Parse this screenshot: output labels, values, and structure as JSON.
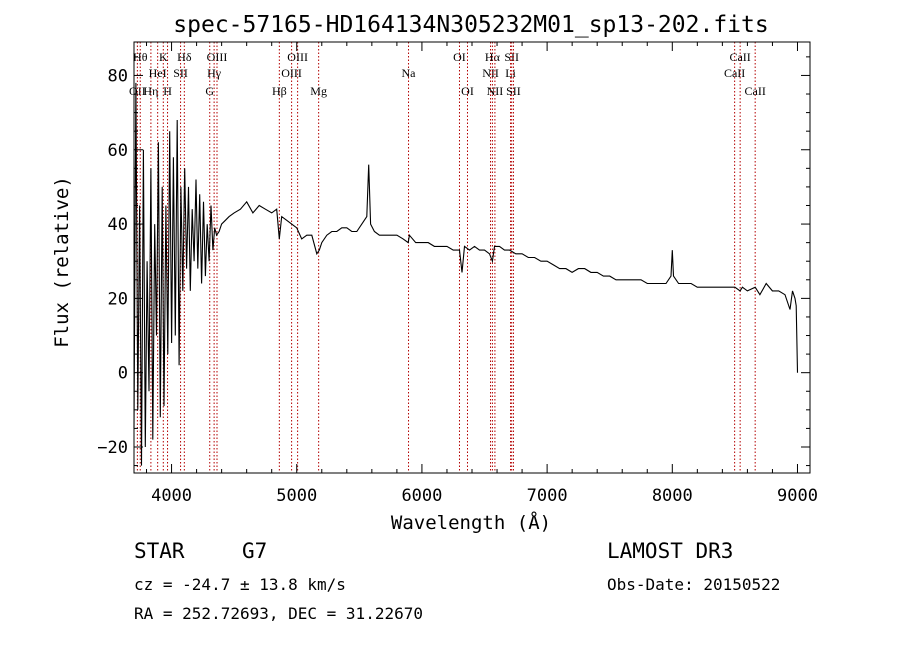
{
  "chart_data": {
    "type": "line",
    "title": "spec-57165-HD164134N305232M01_sp13-202.fits",
    "xlabel": "Wavelength (Å)",
    "ylabel": "Flux (relative)",
    "xlim": [
      3700,
      9100
    ],
    "ylim": [
      -27,
      89
    ],
    "xticks": [
      4000,
      5000,
      6000,
      7000,
      8000,
      9000
    ],
    "yticks": [
      -20,
      0,
      20,
      40,
      60,
      80
    ],
    "series": [
      {
        "name": "spectrum",
        "x": [
          3700,
          3715,
          3730,
          3745,
          3760,
          3775,
          3790,
          3805,
          3820,
          3835,
          3850,
          3865,
          3880,
          3895,
          3910,
          3925,
          3940,
          3955,
          3970,
          3985,
          4000,
          4015,
          4030,
          4045,
          4060,
          4075,
          4090,
          4105,
          4120,
          4135,
          4150,
          4165,
          4180,
          4195,
          4210,
          4225,
          4240,
          4255,
          4270,
          4285,
          4300,
          4315,
          4330,
          4345,
          4360,
          4380,
          4400,
          4430,
          4460,
          4500,
          4550,
          4600,
          4650,
          4700,
          4750,
          4800,
          4840,
          4861,
          4880,
          4920,
          4960,
          5000,
          5040,
          5080,
          5120,
          5160,
          5180,
          5200,
          5240,
          5280,
          5320,
          5360,
          5400,
          5440,
          5480,
          5520,
          5560,
          5575,
          5590,
          5620,
          5660,
          5700,
          5750,
          5800,
          5850,
          5890,
          5900,
          5950,
          6000,
          6050,
          6100,
          6150,
          6200,
          6250,
          6300,
          6320,
          6340,
          6380,
          6420,
          6460,
          6500,
          6540,
          6563,
          6580,
          6620,
          6660,
          6700,
          6750,
          6800,
          6850,
          6900,
          6950,
          7000,
          7050,
          7100,
          7150,
          7200,
          7250,
          7300,
          7350,
          7400,
          7450,
          7500,
          7550,
          7600,
          7650,
          7700,
          7750,
          7800,
          7850,
          7900,
          7950,
          7990,
          8000,
          8010,
          8050,
          8100,
          8150,
          8200,
          8250,
          8300,
          8350,
          8400,
          8450,
          8500,
          8542,
          8560,
          8600,
          8662,
          8700,
          8750,
          8800,
          8850,
          8900,
          8940,
          8960,
          8980,
          8990,
          9000
        ],
        "values": [
          -15,
          78,
          -10,
          45,
          -25,
          60,
          -20,
          30,
          -5,
          55,
          -18,
          40,
          10,
          62,
          -12,
          50,
          -9,
          45,
          5,
          65,
          8,
          58,
          10,
          68,
          2,
          50,
          22,
          55,
          28,
          50,
          22,
          44,
          30,
          52,
          28,
          48,
          24,
          46,
          26,
          40,
          30,
          45,
          33,
          39,
          37,
          38,
          40,
          41,
          42,
          43,
          44,
          46,
          43,
          45,
          44,
          43,
          44,
          36,
          42,
          41,
          40,
          39,
          36,
          37,
          37,
          32,
          33,
          35,
          37,
          38,
          38,
          39,
          39,
          38,
          38,
          40,
          42,
          56,
          40,
          38,
          37,
          37,
          37,
          37,
          36,
          35,
          37,
          35,
          35,
          35,
          34,
          34,
          34,
          33,
          33,
          27,
          34,
          33,
          34,
          33,
          33,
          32,
          30,
          34,
          34,
          33,
          33,
          32,
          32,
          31,
          31,
          30,
          30,
          29,
          28,
          28,
          27,
          28,
          28,
          27,
          27,
          26,
          26,
          25,
          25,
          25,
          25,
          25,
          24,
          24,
          24,
          24,
          26,
          33,
          26,
          24,
          24,
          24,
          23,
          23,
          23,
          23,
          23,
          23,
          23,
          22,
          23,
          22,
          23,
          21,
          24,
          22,
          22,
          21,
          17,
          22,
          20,
          18,
          0
        ]
      }
    ],
    "line_markers": [
      {
        "name": "OII",
        "x": 3727,
        "row": 3
      },
      {
        "name": "Hθ",
        "x": 3750,
        "row": 1
      },
      {
        "name": "Hη",
        "x": 3835,
        "row": 3
      },
      {
        "name": "HeI",
        "x": 3889,
        "row": 2
      },
      {
        "name": "K",
        "x": 3934,
        "row": 1
      },
      {
        "name": "H",
        "x": 3968,
        "row": 3
      },
      {
        "name": "SII",
        "x": 4072,
        "row": 2
      },
      {
        "name": "Hδ",
        "x": 4102,
        "row": 1
      },
      {
        "name": "Hγ",
        "x": 4340,
        "row": 2
      },
      {
        "name": "G",
        "x": 4305,
        "row": 3
      },
      {
        "name": "OIII",
        "x": 4363,
        "row": 1
      },
      {
        "name": "Hβ",
        "x": 4861,
        "row": 3
      },
      {
        "name": "OIII",
        "x": 4959,
        "row": 2
      },
      {
        "name": "OIII",
        "x": 5007,
        "row": 1
      },
      {
        "name": "Mg",
        "x": 5175,
        "row": 3
      },
      {
        "name": "Na",
        "x": 5893,
        "row": 2
      },
      {
        "name": "OI",
        "x": 6300,
        "row": 1
      },
      {
        "name": "OI",
        "x": 6364,
        "row": 3
      },
      {
        "name": "NII",
        "x": 6548,
        "row": 2
      },
      {
        "name": "Hα",
        "x": 6563,
        "row": 1
      },
      {
        "name": "NII",
        "x": 6583,
        "row": 3
      },
      {
        "name": "Li",
        "x": 6708,
        "row": 2
      },
      {
        "name": "SII",
        "x": 6717,
        "row": 1
      },
      {
        "name": "SII",
        "x": 6731,
        "row": 3
      },
      {
        "name": "CaII",
        "x": 8498,
        "row": 2
      },
      {
        "name": "CaII",
        "x": 8542,
        "row": 1
      },
      {
        "name": "CaII",
        "x": 8662,
        "row": 3
      }
    ],
    "colors": {
      "spectrum": "#000000",
      "markers": "#b30000",
      "axes": "#000000"
    }
  },
  "info": {
    "object_class": "STAR",
    "subclass": "G7",
    "survey": "LAMOST DR3",
    "redshift": "cz = -24.7 ± 13.8 km/s",
    "obs_date": "Obs-Date: 20150522",
    "coords": "RA = 252.72693, DEC =  31.22670"
  }
}
